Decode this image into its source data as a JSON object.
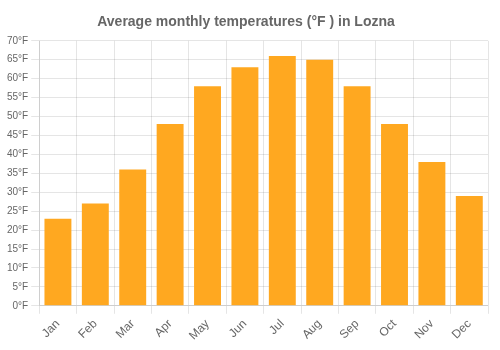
{
  "chart_data": {
    "type": "bar",
    "title": "Average monthly temperatures (°F ) in Lozna",
    "categories": [
      "Jan",
      "Feb",
      "Mar",
      "Apr",
      "May",
      "Jun",
      "Jul",
      "Aug",
      "Sep",
      "Oct",
      "Nov",
      "Dec"
    ],
    "values": [
      23,
      27,
      36,
      48,
      58,
      63,
      66,
      65,
      58,
      48,
      38,
      29
    ],
    "color": "#FFA820",
    "ylim": [
      0,
      70
    ],
    "yticks": [
      {
        "value": 0,
        "label": "0°F"
      },
      {
        "value": 5,
        "label": "5°F"
      },
      {
        "value": 10,
        "label": "10°F"
      },
      {
        "value": 15,
        "label": "15°F"
      },
      {
        "value": 20,
        "label": "20°F"
      },
      {
        "value": 25,
        "label": "25°F"
      },
      {
        "value": 30,
        "label": "30°F"
      },
      {
        "value": 35,
        "label": "35°F"
      },
      {
        "value": 40,
        "label": "40°F"
      },
      {
        "value": 45,
        "label": "45°F"
      },
      {
        "value": 50,
        "label": "50°F"
      },
      {
        "value": 55,
        "label": "55°F"
      },
      {
        "value": 60,
        "label": "60°F"
      },
      {
        "value": 65,
        "label": "65°F"
      },
      {
        "value": 70,
        "label": "70°F"
      }
    ],
    "grid": true
  }
}
